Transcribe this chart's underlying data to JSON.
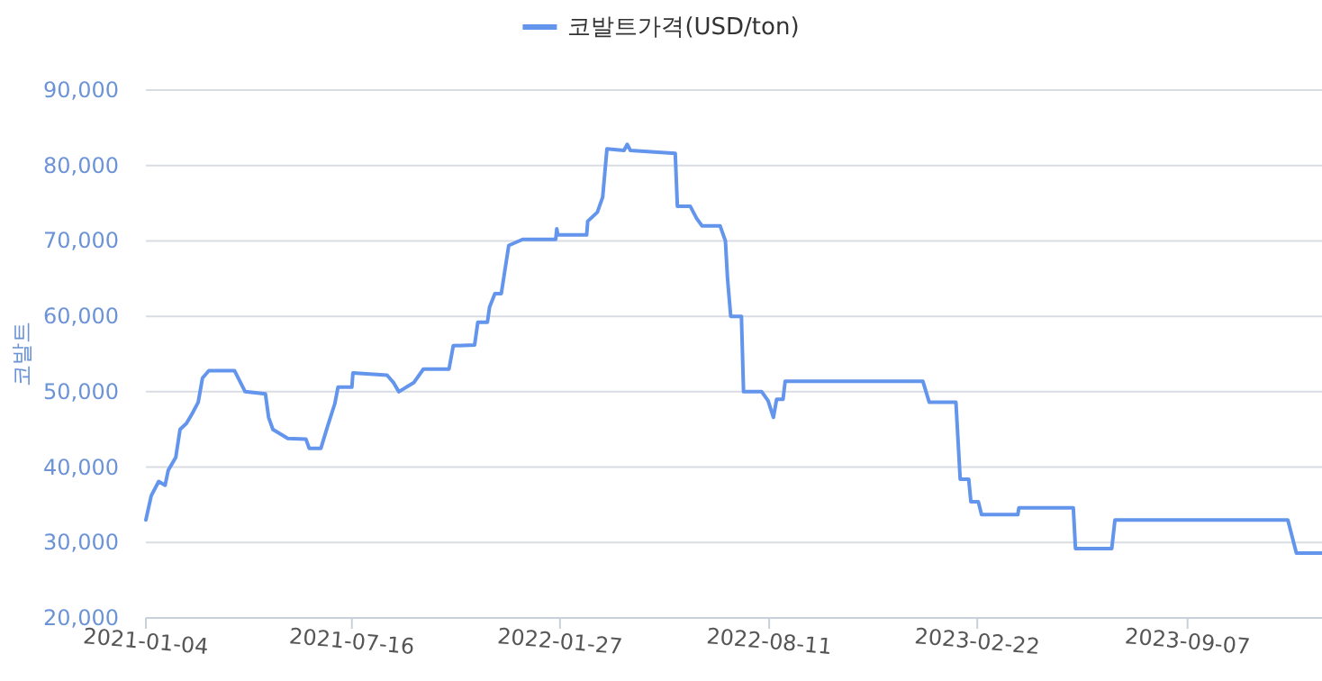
{
  "chart_data": {
    "type": "line",
    "ylabel": "코발트",
    "legend": "top",
    "grid": "y",
    "marker": "none",
    "line_style": "solid",
    "xlim": [
      "2021-01-04",
      "2024-01-11"
    ],
    "xticks": [
      "2021-01-04",
      "2021-07-16",
      "2022-01-27",
      "2022-08-11",
      "2023-02-22",
      "2023-09-07"
    ],
    "ylim": [
      20000,
      90000
    ],
    "yticks": [
      {
        "value": 20000,
        "label": "20,000"
      },
      {
        "value": 30000,
        "label": "30,000"
      },
      {
        "value": 40000,
        "label": "40,000"
      },
      {
        "value": 50000,
        "label": "50,000"
      },
      {
        "value": 60000,
        "label": "60,000"
      },
      {
        "value": 70000,
        "label": "70,000"
      },
      {
        "value": 80000,
        "label": "80,000"
      },
      {
        "value": 90000,
        "label": "90,000"
      }
    ],
    "series": [
      {
        "name": "코발트가격(USD/ton)",
        "color": "#6495ed",
        "x": [
          "2021-01-04",
          "2021-01-09",
          "2021-01-16",
          "2021-01-22",
          "2021-01-25",
          "2021-02-01",
          "2021-02-05",
          "2021-02-11",
          "2021-02-16",
          "2021-02-22",
          "2021-02-26",
          "2021-03-04",
          "2021-03-28",
          "2021-04-07",
          "2021-04-26",
          "2021-04-29",
          "2021-05-03",
          "2021-05-17",
          "2021-06-03",
          "2021-06-06",
          "2021-06-17",
          "2021-06-23",
          "2021-06-30",
          "2021-07-03",
          "2021-07-16",
          "2021-07-17",
          "2021-08-18",
          "2021-08-24",
          "2021-08-29",
          "2021-09-12",
          "2021-09-21",
          "2021-10-15",
          "2021-10-19",
          "2021-11-08",
          "2021-11-11",
          "2021-11-20",
          "2021-11-22",
          "2021-11-27",
          "2021-12-03",
          "2021-12-10",
          "2021-12-23",
          "2022-01-23",
          "2022-01-24",
          "2022-01-25",
          "2022-02-21",
          "2022-02-22",
          "2022-03-03",
          "2022-03-08",
          "2022-03-12",
          "2022-03-28",
          "2022-03-31",
          "2022-04-03",
          "2022-05-15",
          "2022-05-17",
          "2022-05-29",
          "2022-06-04",
          "2022-06-09",
          "2022-06-26",
          "2022-07-01",
          "2022-07-03",
          "2022-07-06",
          "2022-07-16",
          "2022-07-18",
          "2022-08-04",
          "2022-08-10",
          "2022-08-15",
          "2022-08-18",
          "2022-08-24",
          "2022-08-26",
          "2023-01-02",
          "2023-01-08",
          "2023-02-02",
          "2023-02-06",
          "2023-02-14",
          "2023-02-16",
          "2023-02-23",
          "2023-02-26",
          "2023-04-01",
          "2023-04-02",
          "2023-05-23",
          "2023-05-25",
          "2023-06-28",
          "2023-07-01",
          "2023-12-10",
          "2023-12-18",
          "2024-01-11"
        ],
        "values": [
          33000,
          36200,
          38100,
          37600,
          39600,
          41300,
          45000,
          45800,
          47000,
          48600,
          51800,
          52800,
          52800,
          50000,
          49700,
          46600,
          45000,
          43800,
          43700,
          42500,
          42500,
          45300,
          48400,
          50600,
          50600,
          52500,
          52200,
          51200,
          50000,
          51200,
          53000,
          53000,
          56100,
          56200,
          59200,
          59200,
          61200,
          63000,
          63000,
          69400,
          70200,
          70200,
          71600,
          70800,
          70800,
          72600,
          73800,
          75800,
          82200,
          82000,
          82800,
          82000,
          81600,
          74600,
          74600,
          73000,
          72000,
          72000,
          70000,
          65000,
          60000,
          60000,
          50000,
          50000,
          48800,
          46600,
          49000,
          49000,
          51400,
          51400,
          48600,
          48600,
          38400,
          38400,
          35400,
          35400,
          33700,
          33700,
          34600,
          34600,
          29200,
          29200,
          33000,
          33000,
          28600,
          28600
        ]
      }
    ]
  }
}
